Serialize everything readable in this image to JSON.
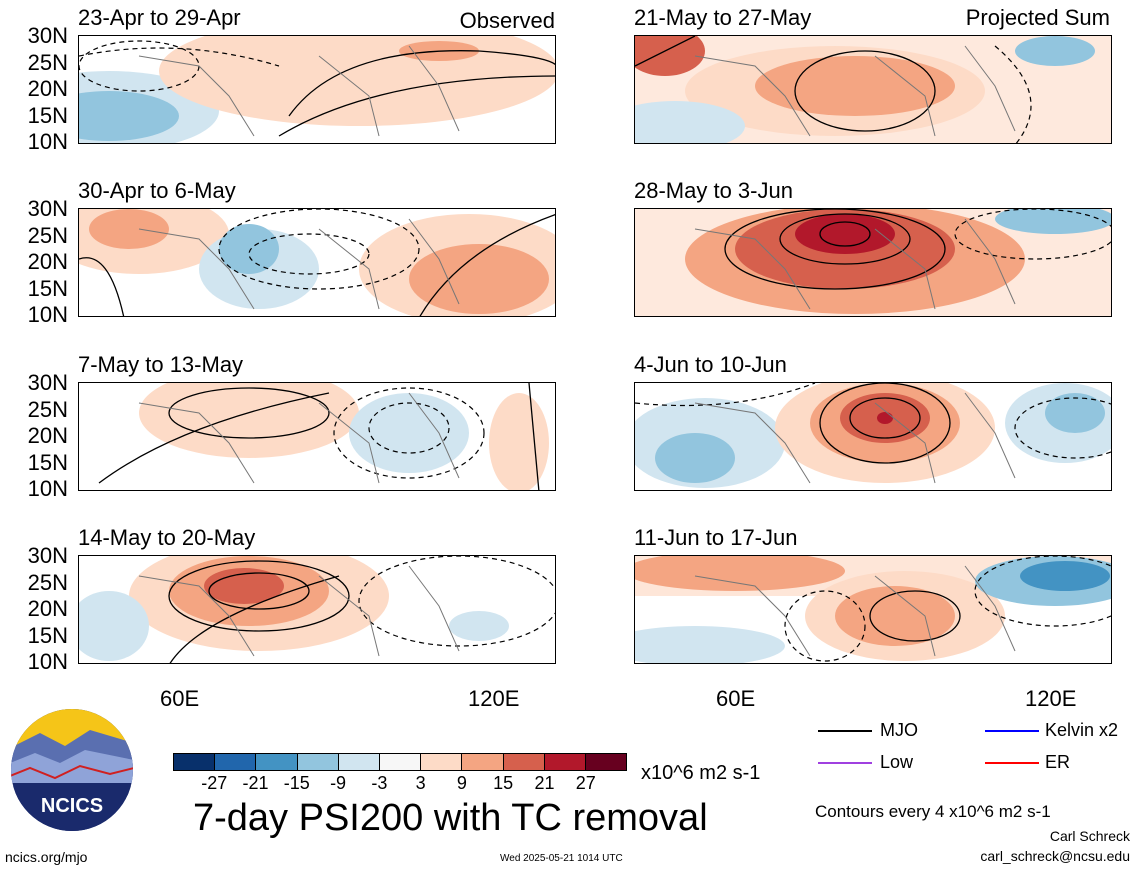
{
  "header": {
    "observed_label": "Observed",
    "projected_label": "Projected Sum"
  },
  "panels": {
    "left": [
      {
        "title": "23-Apr to 29-Apr"
      },
      {
        "title": "30-Apr to 6-May"
      },
      {
        "title": "7-May to 13-May"
      },
      {
        "title": "14-May to 20-May"
      }
    ],
    "right": [
      {
        "title": "21-May to 27-May"
      },
      {
        "title": "28-May to 3-Jun"
      },
      {
        "title": "4-Jun to 10-Jun"
      },
      {
        "title": "11-Jun to 17-Jun"
      }
    ]
  },
  "axes": {
    "lat_ticks": [
      "30N",
      "25N",
      "20N",
      "15N",
      "10N"
    ],
    "lon_ticks": [
      "60E",
      "120E"
    ]
  },
  "colorbar": {
    "labels": [
      "-27",
      "-21",
      "-15",
      "-9",
      "-3",
      "3",
      "9",
      "15",
      "21",
      "27"
    ],
    "units": "x10^6 m2 s-1",
    "colors": [
      "#08306b",
      "#2166ac",
      "#4393c3",
      "#92c5de",
      "#d1e5f0",
      "#f7f7f7",
      "#fddbc7",
      "#f4a582",
      "#d6604d",
      "#b2182b",
      "#67001f"
    ]
  },
  "legend": {
    "mjo": "MJO",
    "kelvin": "Kelvin x2",
    "low": "Low",
    "er": "ER",
    "mjo_color": "#000000",
    "kelvin_color": "#0000ff",
    "low_color": "#a040e0",
    "er_color": "#ff0000"
  },
  "footer": {
    "main_title": "7-day PSI200 with TC removal",
    "contours_note": "Contours every 4 x10^6 m2 s-1",
    "author": "Carl Schreck",
    "email": "carl_schreck@ncsu.edu",
    "url": "ncics.org/mjo",
    "timestamp": "Wed 2025-05-21 1014 UTC",
    "logo_text": "NCICS"
  }
}
